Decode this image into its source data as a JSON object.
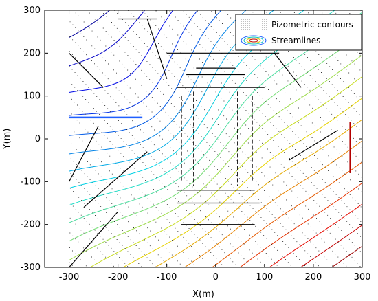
{
  "chart_data": {
    "type": "contour",
    "title": "",
    "xlabel": "X(m)",
    "ylabel": "Y(m)",
    "xlim": [
      -350,
      300
    ],
    "ylim": [
      -300,
      300
    ],
    "xticks": [
      -300,
      -200,
      -100,
      0,
      100,
      200,
      300
    ],
    "yticks": [
      -300,
      -200,
      -100,
      0,
      100,
      200,
      300
    ],
    "xtick_labels": [
      "-300",
      "-200",
      "-100",
      "0",
      "100",
      "200",
      "300"
    ],
    "ytick_labels": [
      "-300",
      "-200",
      "-100",
      "0",
      "100",
      "200",
      "300"
    ],
    "grid": false,
    "legend": {
      "placement": "top-right",
      "entries": [
        "Pizometric contours",
        "Streamlines"
      ]
    },
    "model_extent": {
      "x": [
        -300,
        300
      ],
      "y": [
        -300,
        300
      ]
    },
    "pumping_well_line": {
      "x": [
        -300,
        -150
      ],
      "y": 50
    },
    "piezometric_contour_levels": 22,
    "colormap": "jet",
    "fractures": [
      {
        "x": [
          -200,
          -120
        ],
        "y": [
          280,
          280
        ]
      },
      {
        "x": [
          -100,
          130
        ],
        "y": [
          200,
          200
        ]
      },
      {
        "x": [
          -60,
          60
        ],
        "y": [
          150,
          150
        ]
      },
      {
        "x": [
          -40,
          40
        ],
        "y": [
          165,
          165
        ]
      },
      {
        "x": [
          -80,
          100
        ],
        "y": [
          120,
          120
        ]
      },
      {
        "x": [
          -80,
          80
        ],
        "y": [
          -120,
          -120
        ]
      },
      {
        "x": [
          -80,
          90
        ],
        "y": [
          -150,
          -150
        ]
      },
      {
        "x": [
          -70,
          80
        ],
        "y": [
          -200,
          -200
        ]
      },
      {
        "x": [
          -70,
          -70
        ],
        "y": [
          100,
          -100
        ]
      },
      {
        "x": [
          -45,
          -45
        ],
        "y": [
          110,
          -110
        ]
      },
      {
        "x": [
          45,
          45
        ],
        "y": [
          110,
          -110
        ]
      },
      {
        "x": [
          75,
          75
        ],
        "y": [
          100,
          -100
        ]
      },
      {
        "x": [
          275,
          275
        ],
        "y": [
          40,
          -80
        ]
      },
      {
        "x": [
          -300,
          -230
        ],
        "y": [
          200,
          120
        ]
      },
      {
        "x": [
          -140,
          -100
        ],
        "y": [
          280,
          140
        ]
      },
      {
        "x": [
          120,
          175
        ],
        "y": [
          200,
          120
        ]
      },
      {
        "x": [
          -300,
          -240
        ],
        "y": [
          -100,
          30
        ]
      },
      {
        "x": [
          -270,
          -140
        ],
        "y": [
          -160,
          -30
        ]
      },
      {
        "x": [
          150,
          250
        ],
        "y": [
          -50,
          20
        ]
      },
      {
        "x": [
          -300,
          -200
        ],
        "y": [
          -300,
          -170
        ]
      }
    ],
    "colors": {
      "well": "#1f5fff",
      "fracture": "#000000",
      "low_head": "#1a10a0",
      "mid_head": "#c8e000",
      "high_head": "#b40000"
    }
  }
}
